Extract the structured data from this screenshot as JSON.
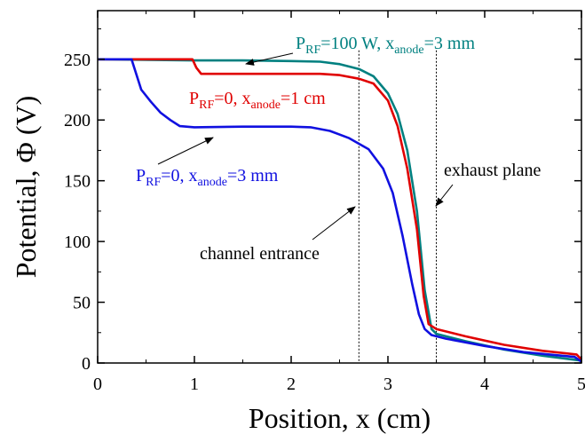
{
  "chart_data": {
    "type": "line",
    "title": "",
    "xlabel": "Position, x (cm)",
    "ylabel": "Potential, Φ (V)",
    "xlim": [
      0,
      5
    ],
    "ylim": [
      0,
      290
    ],
    "x_ticks": [
      0,
      1,
      2,
      3,
      4,
      5
    ],
    "y_ticks": [
      0,
      50,
      100,
      150,
      200,
      250
    ],
    "x_tick_labels": [
      "0",
      "1",
      "2",
      "3",
      "4",
      "5"
    ],
    "y_tick_labels": [
      "0",
      "50",
      "100",
      "150",
      "200",
      "250"
    ],
    "grid": false,
    "legend": "none",
    "series": [
      {
        "color": "#008080",
        "points": [
          [
            0,
            250
          ],
          [
            0.5,
            249.5
          ],
          [
            1,
            249
          ],
          [
            1.5,
            249
          ],
          [
            2,
            248.5
          ],
          [
            2.3,
            248
          ],
          [
            2.5,
            246
          ],
          [
            2.7,
            242
          ],
          [
            2.85,
            236
          ],
          [
            3.0,
            222
          ],
          [
            3.1,
            205
          ],
          [
            3.2,
            175
          ],
          [
            3.3,
            125
          ],
          [
            3.38,
            60
          ],
          [
            3.45,
            28
          ],
          [
            3.5,
            24
          ],
          [
            3.8,
            18
          ],
          [
            4.2,
            11
          ],
          [
            4.6,
            6
          ],
          [
            4.9,
            3
          ],
          [
            5,
            2
          ]
        ]
      },
      {
        "color": "#e00000",
        "points": [
          [
            0,
            250
          ],
          [
            0.5,
            250
          ],
          [
            0.98,
            250
          ],
          [
            1.02,
            243
          ],
          [
            1.07,
            238
          ],
          [
            1.5,
            238
          ],
          [
            2,
            238
          ],
          [
            2.3,
            238
          ],
          [
            2.5,
            237
          ],
          [
            2.7,
            234
          ],
          [
            2.85,
            230
          ],
          [
            3.0,
            216
          ],
          [
            3.1,
            195
          ],
          [
            3.2,
            160
          ],
          [
            3.3,
            110
          ],
          [
            3.37,
            55
          ],
          [
            3.42,
            32
          ],
          [
            3.5,
            28
          ],
          [
            3.8,
            22
          ],
          [
            4.2,
            15
          ],
          [
            4.6,
            10
          ],
          [
            4.95,
            7
          ],
          [
            5,
            3
          ]
        ]
      },
      {
        "color": "#1010e0",
        "points": [
          [
            0,
            250
          ],
          [
            0.35,
            250
          ],
          [
            0.45,
            225
          ],
          [
            0.55,
            215
          ],
          [
            0.65,
            206
          ],
          [
            0.75,
            200
          ],
          [
            0.85,
            195
          ],
          [
            1.0,
            194
          ],
          [
            1.5,
            194.5
          ],
          [
            2.0,
            194.5
          ],
          [
            2.2,
            194
          ],
          [
            2.4,
            191
          ],
          [
            2.6,
            185
          ],
          [
            2.8,
            176
          ],
          [
            2.95,
            160
          ],
          [
            3.05,
            140
          ],
          [
            3.15,
            105
          ],
          [
            3.25,
            65
          ],
          [
            3.32,
            40
          ],
          [
            3.38,
            28
          ],
          [
            3.45,
            23
          ],
          [
            3.6,
            20
          ],
          [
            4.0,
            14
          ],
          [
            4.4,
            9
          ],
          [
            4.8,
            6
          ],
          [
            4.93,
            5
          ],
          [
            5,
            1
          ]
        ]
      }
    ],
    "vertical_lines": [
      2.7,
      3.5
    ],
    "annotations": [
      {
        "id": "teal",
        "color": "#008080",
        "P": "P",
        "sub1": "RF",
        "mid": "=100 W, x",
        "sub2": "anode",
        "tail": "=3 mm"
      },
      {
        "id": "red",
        "color": "#e00000",
        "P": "P",
        "sub1": "RF",
        "mid": "=0, x",
        "sub2": "anode",
        "tail": "=1 cm"
      },
      {
        "id": "blue",
        "color": "#1010e0",
        "P": "P",
        "sub1": "RF",
        "mid": "=0, x",
        "sub2": "anode",
        "tail": "=3 mm"
      },
      {
        "id": "exhaust",
        "color": "#000000",
        "text": "exhaust plane"
      },
      {
        "id": "channel",
        "color": "#000000",
        "text": "channel entrance"
      }
    ]
  }
}
